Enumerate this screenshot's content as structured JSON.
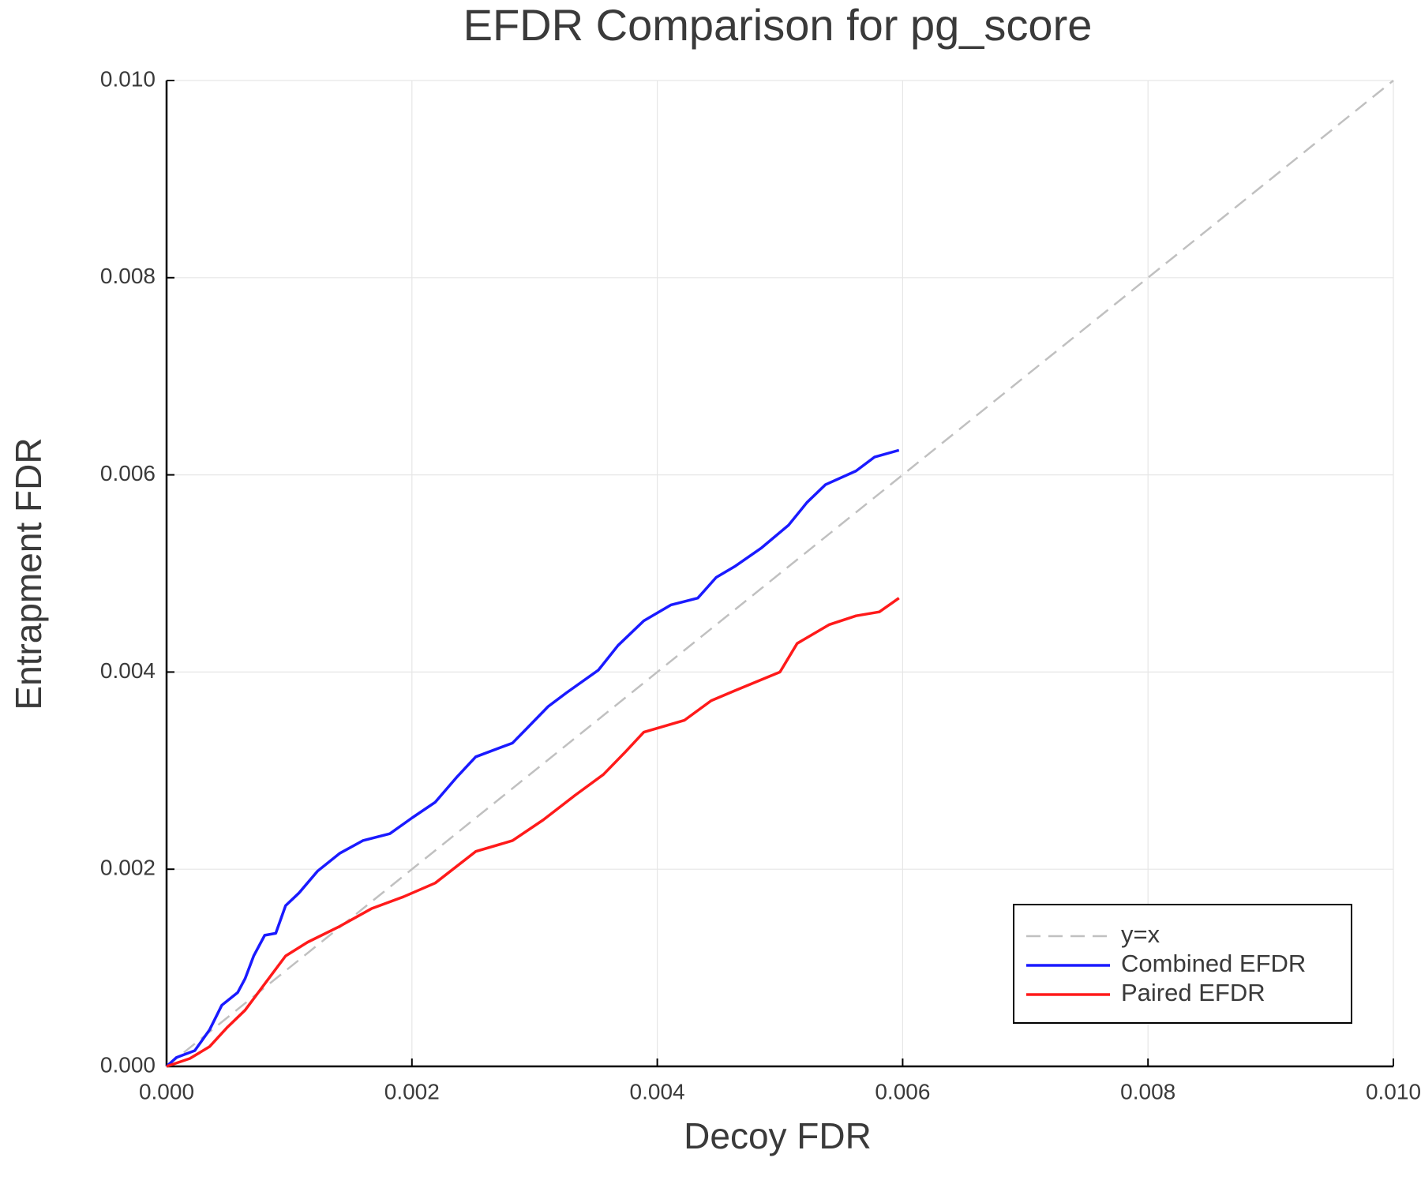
{
  "chart_data": {
    "type": "line",
    "title": "EFDR Comparison for pg_score",
    "x_label": "Decoy FDR",
    "y_label": "Entrapment FDR",
    "xlim": [
      0,
      0.01
    ],
    "ylim": [
      0,
      0.01
    ],
    "xticks": [
      {
        "value": 0,
        "label": "0.000"
      },
      {
        "value": 0.002,
        "label": "0.002"
      },
      {
        "value": 0.004,
        "label": "0.004"
      },
      {
        "value": 0.006,
        "label": "0.006"
      },
      {
        "value": 0.008,
        "label": "0.008"
      },
      {
        "value": 0.01,
        "label": "0.010"
      }
    ],
    "yticks": [
      {
        "value": 0,
        "label": "0.000"
      },
      {
        "value": 0.002,
        "label": "0.002"
      },
      {
        "value": 0.004,
        "label": "0.004"
      },
      {
        "value": 0.006,
        "label": "0.006"
      },
      {
        "value": 0.008,
        "label": "0.008"
      },
      {
        "value": 0.01,
        "label": "0.010"
      }
    ],
    "grid": true,
    "legend": "bottom-right",
    "series": [
      {
        "name": "y=x",
        "color": "#c0c0c0",
        "dashed": true,
        "x": [
          0,
          0.01
        ],
        "values": [
          0,
          0.01
        ]
      },
      {
        "name": "Combined EFDR",
        "color": "#1a1aff",
        "dashed": false,
        "x": [
          0,
          8e-05,
          0.00023,
          0.00035,
          0.00045,
          0.00058,
          0.00064,
          0.00071,
          0.0008,
          0.00089,
          0.00097,
          0.00108,
          0.00123,
          0.00141,
          0.0016,
          0.00182,
          0.002,
          0.00219,
          0.00237,
          0.00252,
          0.00282,
          0.00293,
          0.00311,
          0.00326,
          0.00352,
          0.00368,
          0.00389,
          0.00411,
          0.00433,
          0.00448,
          0.00463,
          0.00485,
          0.00507,
          0.00522,
          0.00537,
          0.00562,
          0.00577,
          0.00597
        ],
        "values": [
          0,
          9e-05,
          0.00016,
          0.00037,
          0.00062,
          0.00075,
          0.00089,
          0.00112,
          0.00133,
          0.00135,
          0.00163,
          0.00176,
          0.00198,
          0.00216,
          0.00229,
          0.00236,
          0.00252,
          0.00268,
          0.00294,
          0.00314,
          0.00328,
          0.00342,
          0.00365,
          0.00379,
          0.00402,
          0.00427,
          0.00452,
          0.00468,
          0.00475,
          0.00496,
          0.00507,
          0.00526,
          0.00549,
          0.00572,
          0.0059,
          0.00604,
          0.00618,
          0.00625
        ]
      },
      {
        "name": "Paired EFDR",
        "color": "#ff1a1a",
        "dashed": false,
        "x": [
          0,
          0.00019,
          0.00035,
          0.00049,
          0.00064,
          0.00082,
          0.00097,
          0.00115,
          0.00141,
          0.00167,
          0.00193,
          0.00219,
          0.00252,
          0.00282,
          0.00307,
          0.00333,
          0.00356,
          0.00374,
          0.00389,
          0.00422,
          0.00444,
          0.00463,
          0.005,
          0.00514,
          0.0054,
          0.00562,
          0.00581,
          0.00597
        ],
        "values": [
          0,
          8e-05,
          0.0002,
          0.00039,
          0.00057,
          0.00087,
          0.00112,
          0.00126,
          0.00142,
          0.0016,
          0.00172,
          0.00186,
          0.00218,
          0.00229,
          0.0025,
          0.00275,
          0.00296,
          0.00319,
          0.00339,
          0.00351,
          0.00371,
          0.00381,
          0.004,
          0.00429,
          0.00448,
          0.00457,
          0.00461,
          0.00475
        ]
      }
    ]
  }
}
